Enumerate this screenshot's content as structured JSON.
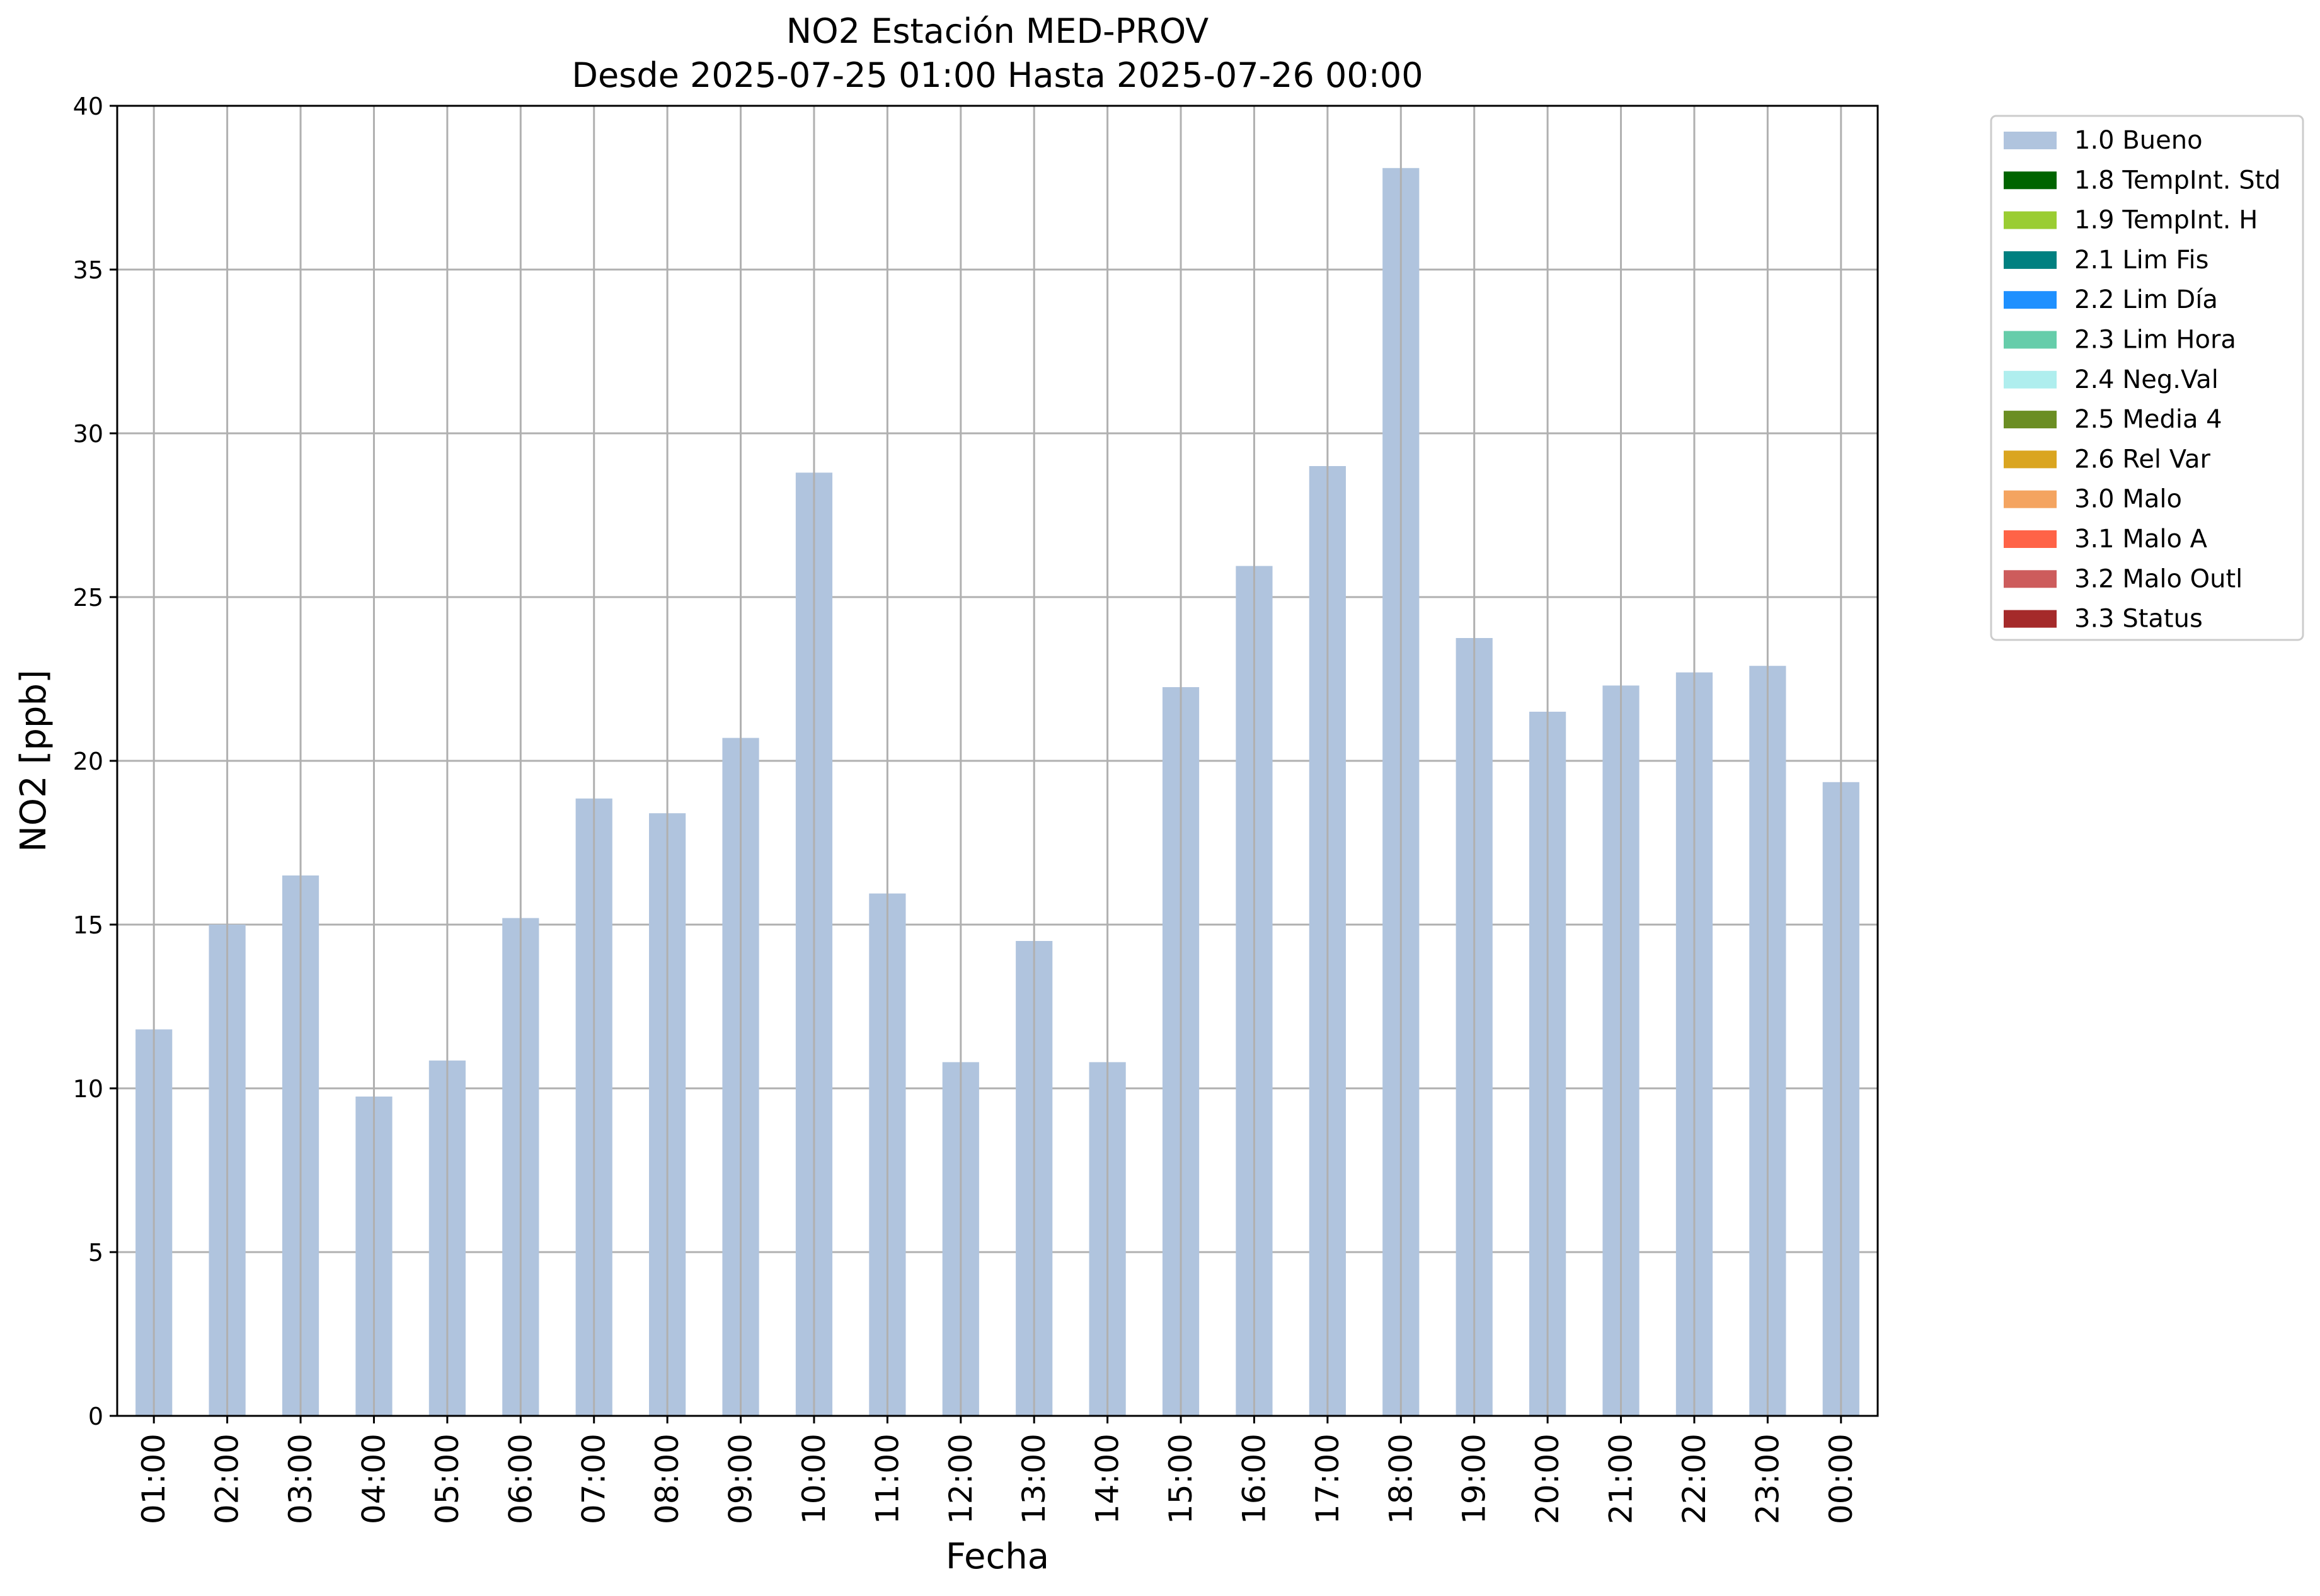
{
  "chart_data": {
    "type": "bar",
    "title": "NO2 Estación MED-PROV",
    "subtitle": "Desde 2025-07-25 01:00 Hasta 2025-07-26 00:00",
    "xlabel": "Fecha",
    "ylabel": "NO2 [ppb]",
    "ylim": [
      0,
      40
    ],
    "yticks": [
      0,
      5,
      10,
      15,
      20,
      25,
      30,
      35,
      40
    ],
    "grid": true,
    "legend_position": "outside-top-right",
    "categories": [
      "01:00",
      "02:00",
      "03:00",
      "04:00",
      "05:00",
      "06:00",
      "07:00",
      "08:00",
      "09:00",
      "10:00",
      "11:00",
      "12:00",
      "13:00",
      "14:00",
      "15:00",
      "16:00",
      "17:00",
      "18:00",
      "19:00",
      "20:00",
      "21:00",
      "22:00",
      "23:00",
      "00:00"
    ],
    "series": [
      {
        "name": "1.0 Bueno",
        "color": "#b0c4de",
        "values": [
          11.8,
          15.0,
          16.5,
          9.75,
          10.85,
          15.2,
          18.85,
          18.4,
          20.7,
          28.8,
          15.95,
          10.8,
          14.5,
          10.8,
          22.25,
          25.95,
          29.0,
          38.1,
          23.75,
          21.5,
          22.3,
          22.7,
          22.9,
          19.35
        ]
      }
    ],
    "legend": [
      {
        "label": "1.0 Bueno",
        "color": "#b0c4de"
      },
      {
        "label": "1.8 TempInt. Std",
        "color": "#006400"
      },
      {
        "label": "1.9 TempInt. H",
        "color": "#9acd32"
      },
      {
        "label": "2.1 Lim Fis",
        "color": "#008080"
      },
      {
        "label": "2.2 Lim Día",
        "color": "#1e90ff"
      },
      {
        "label": "2.3 Lim Hora",
        "color": "#66cdaa"
      },
      {
        "label": "2.4 Neg.Val",
        "color": "#afeeee"
      },
      {
        "label": "2.5 Media 4",
        "color": "#6b8e23"
      },
      {
        "label": "2.6 Rel Var",
        "color": "#daa520"
      },
      {
        "label": "3.0 Malo",
        "color": "#f4a460"
      },
      {
        "label": "3.1 Malo A",
        "color": "#ff6347"
      },
      {
        "label": "3.2 Malo Outl",
        "color": "#cd5c5c"
      },
      {
        "label": "3.3 Status",
        "color": "#a52a2a"
      }
    ]
  }
}
